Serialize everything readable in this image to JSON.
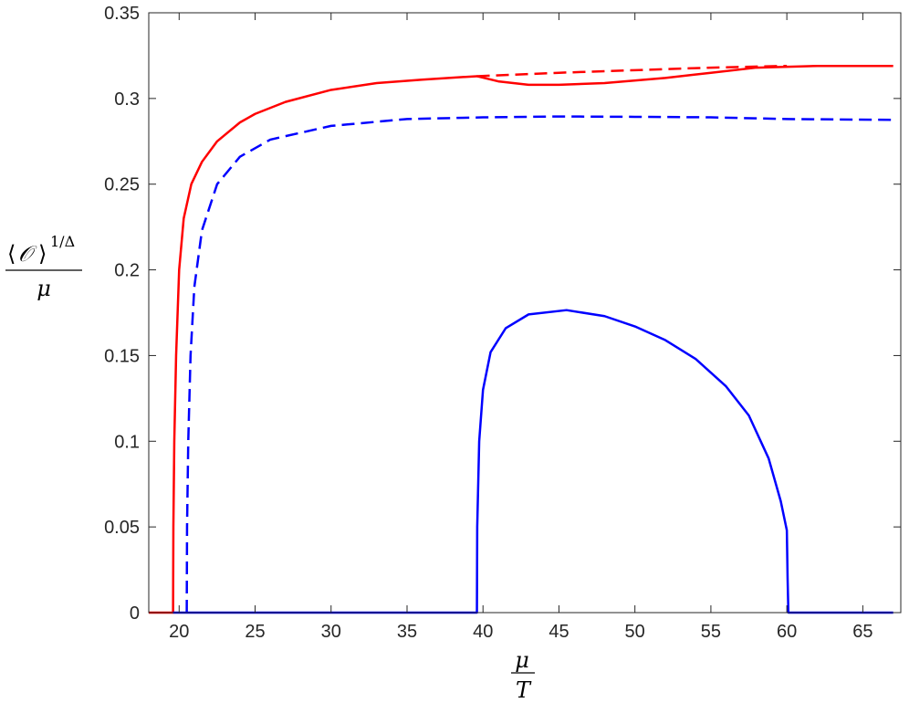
{
  "chart_data": {
    "type": "line",
    "title": "",
    "xlabel": {
      "numerator": "μ",
      "denominator": "T"
    },
    "ylabel": {
      "open": "⟨",
      "operator": "𝒪",
      "close": "⟩",
      "exponent": "1/Δ",
      "denominator": "μ"
    },
    "xlim": [
      18,
      67.5
    ],
    "ylim": [
      0,
      0.35
    ],
    "xticks": [
      20,
      25,
      30,
      35,
      40,
      45,
      50,
      55,
      60,
      65
    ],
    "yticks": [
      0,
      0.05,
      0.1,
      0.15,
      0.2,
      0.25,
      0.3,
      0.35
    ],
    "grid": false,
    "legend": "none",
    "series": [
      {
        "color": "#ff0000",
        "style": "solid",
        "points": [
          [
            18.0,
            0
          ],
          [
            19.6,
            0
          ],
          [
            19.62,
            0.05
          ],
          [
            19.68,
            0.1
          ],
          [
            19.8,
            0.15
          ],
          [
            20.0,
            0.2
          ],
          [
            20.3,
            0.23
          ],
          [
            20.8,
            0.25
          ],
          [
            21.5,
            0.263
          ],
          [
            22.5,
            0.275
          ],
          [
            24,
            0.286
          ],
          [
            25,
            0.291
          ],
          [
            27,
            0.298
          ],
          [
            30,
            0.305
          ],
          [
            33,
            0.309
          ],
          [
            36,
            0.311
          ],
          [
            39.6,
            0.313
          ],
          [
            41,
            0.31
          ],
          [
            43,
            0.308
          ],
          [
            45,
            0.308
          ],
          [
            48,
            0.309
          ],
          [
            52,
            0.312
          ],
          [
            55,
            0.315
          ],
          [
            58,
            0.318
          ],
          [
            62,
            0.319
          ],
          [
            67,
            0.319
          ]
        ]
      },
      {
        "color": "#ff0000",
        "style": "dashed",
        "points": [
          [
            39.6,
            0.313
          ],
          [
            45,
            0.315
          ],
          [
            50,
            0.3165
          ],
          [
            55,
            0.318
          ],
          [
            60,
            0.319
          ]
        ]
      },
      {
        "color": "#0000ff",
        "style": "dashed",
        "points": [
          [
            20.5,
            0
          ],
          [
            20.52,
            0.05
          ],
          [
            20.6,
            0.1
          ],
          [
            20.75,
            0.15
          ],
          [
            21.0,
            0.19
          ],
          [
            21.5,
            0.223
          ],
          [
            22.5,
            0.25
          ],
          [
            24,
            0.266
          ],
          [
            26,
            0.276
          ],
          [
            30,
            0.284
          ],
          [
            35,
            0.288
          ],
          [
            40,
            0.289
          ],
          [
            45,
            0.2895
          ],
          [
            50,
            0.2893
          ],
          [
            55,
            0.289
          ],
          [
            60,
            0.288
          ],
          [
            67,
            0.2875
          ]
        ]
      },
      {
        "color": "#0000ff",
        "style": "solid",
        "points": [
          [
            19.6,
            0
          ],
          [
            39.6,
            0
          ],
          [
            39.62,
            0.05
          ],
          [
            39.75,
            0.1
          ],
          [
            40.0,
            0.13
          ],
          [
            40.5,
            0.152
          ],
          [
            41.5,
            0.166
          ],
          [
            43,
            0.174
          ],
          [
            45.5,
            0.1765
          ],
          [
            48,
            0.173
          ],
          [
            50,
            0.167
          ],
          [
            52,
            0.159
          ],
          [
            54,
            0.148
          ],
          [
            56,
            0.132
          ],
          [
            57.5,
            0.115
          ],
          [
            58.8,
            0.09
          ],
          [
            59.6,
            0.065
          ],
          [
            60.0,
            0.048
          ],
          [
            60.05,
            0.02
          ],
          [
            60.1,
            0
          ],
          [
            67,
            0
          ]
        ]
      }
    ]
  }
}
